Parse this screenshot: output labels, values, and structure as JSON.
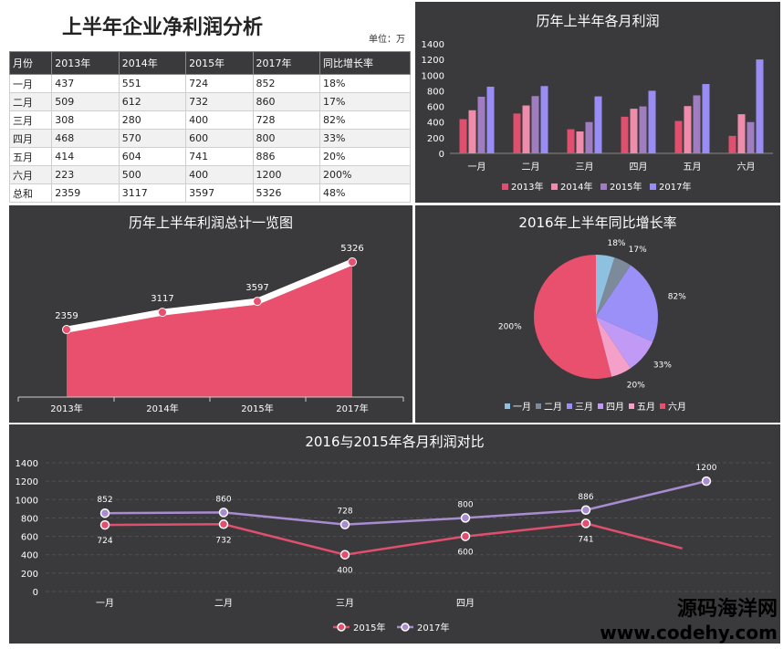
{
  "header": {
    "title": "上半年企业净利润分析",
    "unit": "单位：万"
  },
  "table": {
    "columns": [
      "月份",
      "2013年",
      "2014年",
      "2015年",
      "2017年",
      "同比增长率"
    ],
    "rows": [
      [
        "一月",
        "437",
        "551",
        "724",
        "852",
        "18%"
      ],
      [
        "二月",
        "509",
        "612",
        "732",
        "860",
        "17%"
      ],
      [
        "三月",
        "308",
        "280",
        "400",
        "728",
        "82%"
      ],
      [
        "四月",
        "468",
        "570",
        "600",
        "800",
        "33%"
      ],
      [
        "五月",
        "414",
        "604",
        "741",
        "886",
        "20%"
      ],
      [
        "六月",
        "223",
        "500",
        "400",
        "1200",
        "200%"
      ],
      [
        "总和",
        "2359",
        "3117",
        "3597",
        "5326",
        "48%"
      ]
    ]
  },
  "chart_data": [
    {
      "type": "bar",
      "title": "历年上半年各月利润",
      "categories": [
        "一月",
        "二月",
        "三月",
        "四月",
        "五月",
        "六月"
      ],
      "series": [
        {
          "name": "2013年",
          "color": "#e0506e",
          "values": [
            437,
            509,
            308,
            468,
            414,
            223
          ]
        },
        {
          "name": "2014年",
          "color": "#f08cab",
          "values": [
            551,
            612,
            280,
            570,
            604,
            500
          ]
        },
        {
          "name": "2015年",
          "color": "#a07cc0",
          "values": [
            724,
            732,
            400,
            600,
            741,
            400
          ]
        },
        {
          "name": "2017年",
          "color": "#9a8cf5",
          "values": [
            852,
            860,
            728,
            800,
            886,
            1200
          ]
        }
      ],
      "ylim": [
        0,
        1400
      ],
      "yticks": [
        0,
        200,
        400,
        600,
        800,
        1000,
        1200,
        1400
      ],
      "legend": "bottom"
    },
    {
      "type": "area",
      "title": "历年上半年利润总计一览图",
      "categories": [
        "2013年",
        "2014年",
        "2015年",
        "2017年"
      ],
      "values": [
        2359,
        3117,
        3597,
        5326
      ],
      "color": "#e8506e",
      "ylim": [
        0,
        6000
      ]
    },
    {
      "type": "pie",
      "title": "2016年上半年同比增长率",
      "labels": [
        "一月",
        "二月",
        "三月",
        "四月",
        "五月",
        "六月"
      ],
      "values": [
        18,
        17,
        82,
        33,
        20,
        200
      ],
      "value_labels": [
        "18%",
        "17%",
        "82%",
        "33%",
        "20%",
        "200%"
      ],
      "colors": [
        "#8ec0e0",
        "#7c8a9a",
        "#9a90f8",
        "#c09af4",
        "#f5a0c8",
        "#e8506e"
      ],
      "legend": "bottom"
    },
    {
      "type": "line",
      "title": "2016与2015年各月利润对比",
      "categories": [
        "一月",
        "二月",
        "三月",
        "四月",
        "五月",
        "六月"
      ],
      "x_labels_shown": [
        "一月",
        "二月",
        "三月",
        "四月"
      ],
      "series": [
        {
          "name": "2015年",
          "color": "#e0506e",
          "values": [
            724,
            732,
            400,
            600,
            741,
            400
          ]
        },
        {
          "name": "2017年",
          "color": "#a88cd0",
          "values": [
            852,
            860,
            728,
            800,
            886,
            1200
          ]
        }
      ],
      "ylim": [
        0,
        1400
      ],
      "yticks": [
        0,
        200,
        400,
        600,
        800,
        1000,
        1200,
        1400
      ],
      "legend": "bottom"
    }
  ],
  "watermark": {
    "line1": "源码海洋网",
    "line2": "www.codehy.com"
  }
}
